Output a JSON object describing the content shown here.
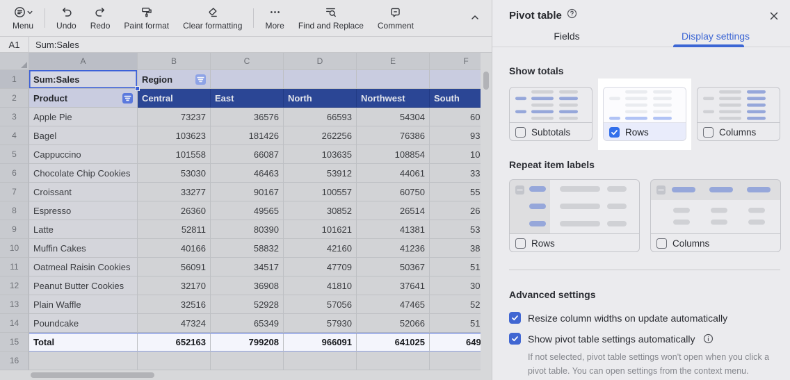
{
  "toolbar": {
    "menu": "Menu",
    "undo": "Undo",
    "redo": "Redo",
    "paint_format": "Paint format",
    "clear_formatting": "Clear formatting",
    "more": "More",
    "find_replace": "Find and Replace",
    "comment": "Comment"
  },
  "formula_bar": {
    "cell_ref": "A1",
    "value": "Sum:Sales"
  },
  "sheet": {
    "column_letters": [
      "A",
      "B",
      "C",
      "D",
      "E",
      "F"
    ],
    "cells": {
      "a1": "Sum:Sales",
      "b1": "Region",
      "a2": "Product"
    },
    "region_headers": [
      "Central",
      "East",
      "North",
      "Northwest",
      "South"
    ],
    "products": [
      {
        "name": "Apple Pie",
        "central": 73237,
        "east": 36576,
        "north": 66593,
        "northwest": 54304,
        "south_clipped": "60"
      },
      {
        "name": "Bagel",
        "central": 103623,
        "east": 181426,
        "north": 262256,
        "northwest": 76386,
        "south_clipped": "93"
      },
      {
        "name": "Cappuccino",
        "central": 101558,
        "east": 66087,
        "north": 103635,
        "northwest": 108854,
        "south_clipped": "104"
      },
      {
        "name": "Chocolate Chip Cookies",
        "central": 53030,
        "east": 46463,
        "north": 53912,
        "northwest": 44061,
        "south_clipped": "33"
      },
      {
        "name": "Croissant",
        "central": 33277,
        "east": 90167,
        "north": 100557,
        "northwest": 60750,
        "south_clipped": "55"
      },
      {
        "name": "Espresso",
        "central": 26360,
        "east": 49565,
        "north": 30852,
        "northwest": 26514,
        "south_clipped": "26"
      },
      {
        "name": "Latte",
        "central": 52811,
        "east": 80390,
        "north": 101621,
        "northwest": 41381,
        "south_clipped": "53"
      },
      {
        "name": "Muffin Cakes",
        "central": 40166,
        "east": 58832,
        "north": 42160,
        "northwest": 41236,
        "south_clipped": "38"
      },
      {
        "name": "Oatmeal Raisin Cookies",
        "central": 56091,
        "east": 34517,
        "north": 47709,
        "northwest": 50367,
        "south_clipped": "51"
      },
      {
        "name": "Peanut Butter Cookies",
        "central": 32170,
        "east": 36908,
        "north": 41810,
        "northwest": 37641,
        "south_clipped": "30"
      },
      {
        "name": "Plain Waffle",
        "central": 32516,
        "east": 52928,
        "north": 57056,
        "northwest": 47465,
        "south_clipped": "52"
      },
      {
        "name": "Poundcake",
        "central": 47324,
        "east": 65349,
        "north": 57930,
        "northwest": 52066,
        "south_clipped": "51"
      }
    ],
    "total": {
      "label": "Total",
      "central": 652163,
      "east": 799208,
      "north": 966091,
      "northwest": 641025,
      "south_clipped": "649"
    },
    "visible_row_count": 16
  },
  "panel": {
    "title": "Pivot table",
    "tabs": {
      "fields": "Fields",
      "display": "Display settings",
      "active": "Display settings"
    },
    "show_totals": {
      "heading": "Show totals",
      "subtotals": {
        "label": "Subtotals",
        "checked": false
      },
      "rows": {
        "label": "Rows",
        "checked": true,
        "spotlighted": true
      },
      "columns": {
        "label": "Columns",
        "checked": false
      }
    },
    "repeat_labels": {
      "heading": "Repeat item labels",
      "rows": {
        "label": "Rows",
        "checked": false
      },
      "columns": {
        "label": "Columns",
        "checked": false
      }
    },
    "advanced": {
      "heading": "Advanced settings",
      "resize": {
        "label": "Resize column widths on update automatically",
        "checked": true
      },
      "show_settings": {
        "label": "Show pivot table settings automatically",
        "checked": true
      },
      "note": "If not selected, pivot table settings won't open when you click a pivot table. You can open settings from the context menu."
    }
  },
  "colors": {
    "accent": "#3370eb",
    "pivot_header_blue": "#2b4695",
    "selection_blue": "#3a5fd8",
    "active_tab_blue": "#3c66d4",
    "total_row_bg": "#f4f5fc",
    "spotlight": "#ffffff"
  }
}
